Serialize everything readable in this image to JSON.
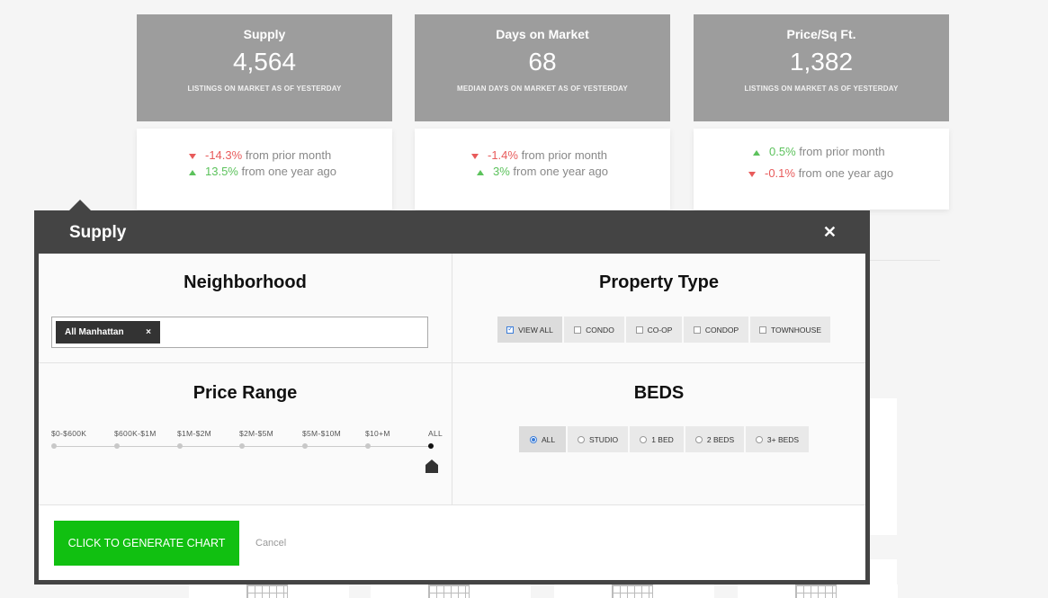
{
  "cards": [
    {
      "title": "Supply",
      "value": "4,564",
      "subtitle": "LISTINGS ON MARKET AS OF YESTERDAY",
      "changes": [
        {
          "dir": "down",
          "num": "-14.3%",
          "text": "from prior month"
        },
        {
          "dir": "up",
          "num": "13.5%",
          "text": "from one year ago"
        }
      ]
    },
    {
      "title": "Days on Market",
      "value": "68",
      "subtitle": "MEDIAN DAYS ON MARKET AS OF YESTERDAY",
      "changes": [
        {
          "dir": "down",
          "num": "-1.4%",
          "text": "from prior month"
        },
        {
          "dir": "up",
          "num": "3%",
          "text": "from one year ago"
        }
      ]
    },
    {
      "title": "Price/Sq Ft.",
      "value": "1,382",
      "subtitle": "LISTINGS ON MARKET AS OF YESTERDAY",
      "changes": [
        {
          "dir": "up",
          "num": "0.5%",
          "text": "from prior month"
        },
        {
          "dir": "down",
          "num": "-0.1%",
          "text": "from one year ago"
        }
      ]
    }
  ],
  "modal": {
    "title": "Supply",
    "close_icon": "close-icon",
    "neighborhood": {
      "heading": "Neighborhood",
      "tag": "All Manhattan",
      "tag_remove": "×"
    },
    "property_type": {
      "heading": "Property Type",
      "options": [
        {
          "label": "VIEW ALL",
          "checked": true
        },
        {
          "label": "CONDO",
          "checked": false
        },
        {
          "label": "CO-OP",
          "checked": false
        },
        {
          "label": "CONDOP",
          "checked": false
        },
        {
          "label": "TOWNHOUSE",
          "checked": false
        }
      ]
    },
    "price_range": {
      "heading": "Price Range",
      "labels": [
        "$0-$600K",
        "$600K-$1M",
        "$1M-$2M",
        "$2M-$5M",
        "$5M-$10M",
        "$10+M",
        "ALL"
      ],
      "selected": "ALL"
    },
    "beds": {
      "heading": "BEDS",
      "options": [
        {
          "label": "ALL",
          "checked": true
        },
        {
          "label": "STUDIO",
          "checked": false
        },
        {
          "label": "1 BED",
          "checked": false
        },
        {
          "label": "2 BEDS",
          "checked": false
        },
        {
          "label": "3+ BEDS",
          "checked": false
        }
      ]
    },
    "generate_label": "CLICK TO GENERATE CHART",
    "cancel_label": "Cancel"
  },
  "colors": {
    "accent_green": "#11c011",
    "down_red": "#e85b5b",
    "up_green": "#5cc25c",
    "modal_dark": "#444444",
    "card_gray": "#9d9d9d"
  }
}
